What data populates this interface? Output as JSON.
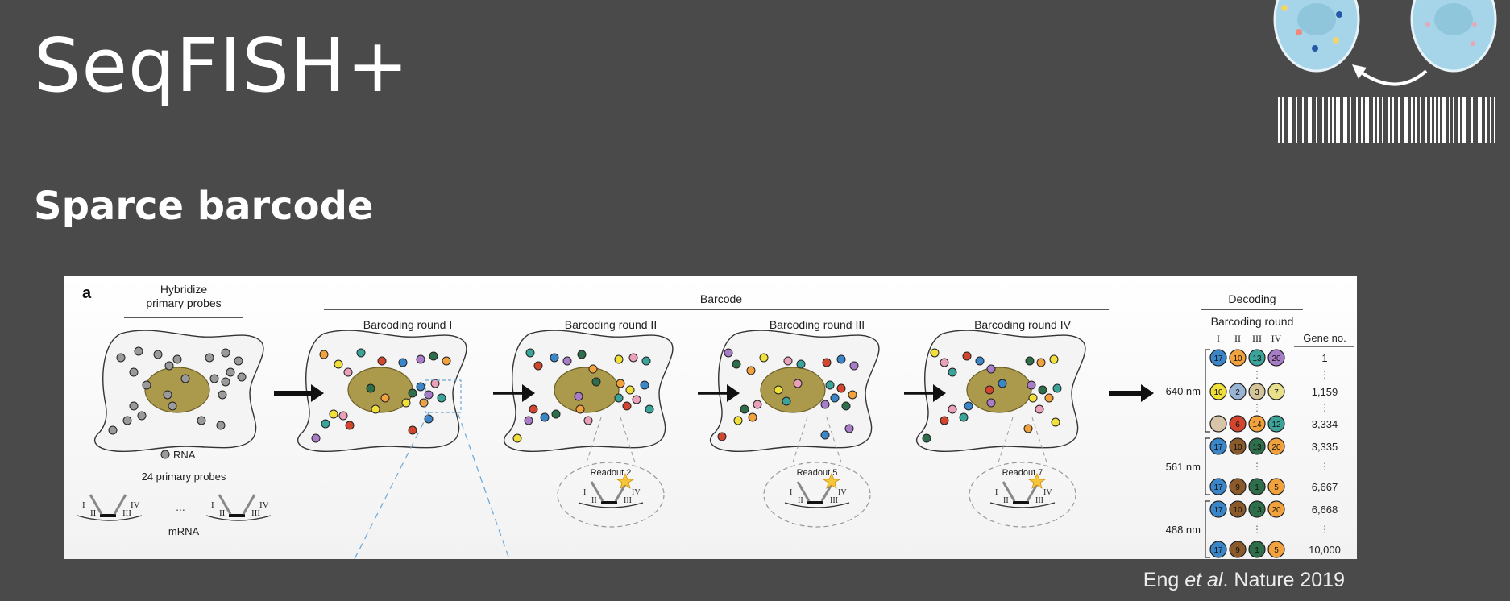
{
  "slide": {
    "title": "SeqFISH+",
    "subtitle": "Sparce barcode"
  },
  "citation": {
    "authors": "Eng",
    "etal": "et al",
    "rest": ". Nature 2019"
  },
  "figure": {
    "panel_letter": "a",
    "hybridize_label_line1": "Hybridize",
    "hybridize_label_line2": "primary probes",
    "rna_label": "RNA",
    "probes_label": "24 primary probes",
    "mrna_label": "mRNA",
    "probe_roman": [
      "I",
      "II",
      "III",
      "IV"
    ],
    "ellipsis": "...",
    "barcode_label": "Barcode",
    "rounds": [
      "Barcoding round I",
      "Barcoding round II",
      "Barcoding round III",
      "Barcoding round IV"
    ],
    "readouts": [
      "Readout 2",
      "Readout 5",
      "Readout 7"
    ],
    "decoding_label": "Decoding",
    "decoding_round_label": "Barcoding round",
    "decoding_columns": [
      "I",
      "II",
      "III",
      "IV"
    ],
    "gene_no_label": "Gene no.",
    "channels": [
      {
        "label": "640 nm",
        "rows": [
          {
            "codes": [
              "17",
              "10",
              "13",
              "20"
            ],
            "gene": "1"
          },
          {
            "codes": [
              "10",
              "2",
              "3",
              "7"
            ],
            "gene": "1,159"
          },
          {
            "codes": [
              "",
              "6",
              "14",
              "12"
            ],
            "gene": "3,334"
          }
        ]
      },
      {
        "label": "561 nm",
        "rows": [
          {
            "codes": [
              "17",
              "10",
              "13",
              "20"
            ],
            "gene": "3,335"
          },
          {
            "codes": [
              "17",
              "9",
              "1",
              "5"
            ],
            "gene": "6,667"
          }
        ]
      },
      {
        "label": "488 nm",
        "rows": [
          {
            "codes": [
              "17",
              "10",
              "13",
              "20"
            ],
            "gene": "6,668"
          },
          {
            "codes": [
              "17",
              "9",
              "1",
              "5"
            ],
            "gene": "10,000"
          }
        ]
      }
    ],
    "colors": {
      "nucleus": "#ac9a4c",
      "cell_fill": "#f4f4f4",
      "dot_blue": "#3a86c8",
      "dot_orange": "#f2a23c",
      "dot_teal": "#3aa49a",
      "dot_purple": "#a87cc6",
      "dot_yellow": "#f1df3a",
      "dot_red": "#d2452f",
      "dot_green": "#2f6e4a",
      "dot_pink": "#e9a0b8",
      "dot_gray": "#9a9a9a"
    }
  },
  "logo": {
    "icon": "cell-barcode-icon"
  }
}
